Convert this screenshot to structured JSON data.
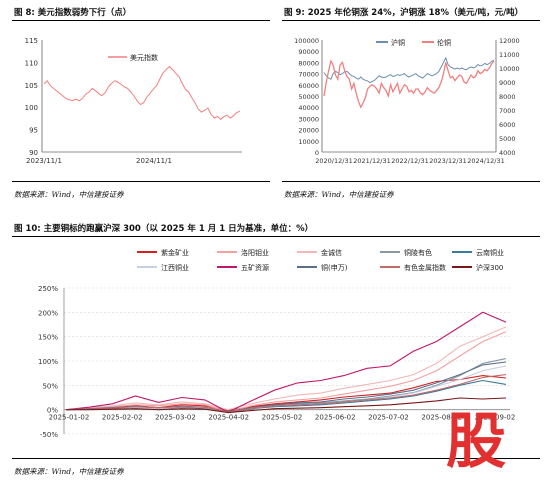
{
  "fig8": {
    "caption": "图 8: 美元指数弱势下行（点）",
    "source": "数据来源：Wind，中信建投证券",
    "chart_data": {
      "type": "line",
      "series": [
        {
          "name": "美元指数",
          "color": "#f08080",
          "values": [
            105.2,
            105.9,
            104.8,
            104.2,
            103.6,
            103.0,
            102.4,
            101.9,
            101.6,
            101.5,
            101.8,
            101.4,
            102.0,
            102.9,
            103.4,
            104.2,
            103.7,
            103.1,
            102.6,
            103.2,
            104.5,
            105.3,
            105.9,
            105.6,
            105.1,
            104.6,
            104.2,
            103.4,
            102.5,
            101.4,
            100.6,
            101.0,
            102.2,
            103.1,
            104.0,
            104.8,
            106.2,
            107.6,
            108.4,
            109.1,
            108.4,
            107.6,
            106.8,
            105.3,
            104.0,
            103.4,
            102.1,
            101.0,
            99.6,
            98.9,
            99.3,
            99.8,
            98.4,
            97.6,
            97.9,
            97.3,
            97.9,
            98.2,
            97.6,
            98.1,
            98.8,
            99.1
          ]
        }
      ],
      "x_ticks": [
        "2023/11/1",
        "2024/11/1"
      ],
      "ylim": [
        90,
        115
      ],
      "y_ticks": [
        90,
        95,
        100,
        105,
        110,
        115
      ]
    }
  },
  "fig9": {
    "caption": "图 9: 2025 年伦铜涨 24%，沪铜涨 18%（美元/吨，元/吨）",
    "source": "数据来源：Wind，中信建投证券",
    "chart_data": {
      "type": "line",
      "series": [
        {
          "name": "沪铜",
          "axis": "left",
          "color": "#6a8fb0",
          "values": [
            71000,
            68000,
            66000,
            65000,
            70000,
            72000,
            71000,
            69000,
            70000,
            71500,
            72000,
            70000,
            68000,
            67500,
            66000,
            65000,
            67000,
            65000,
            64000,
            63500,
            62000,
            63000,
            64000,
            66000,
            68000,
            67000,
            66500,
            67000,
            68000,
            69000,
            67500,
            68000,
            69000,
            68500,
            69000,
            70000,
            68000,
            67000,
            68000,
            69000,
            70000,
            68000,
            67000,
            66000,
            68000,
            70000,
            69000,
            68000,
            69000,
            70000,
            72000,
            76000,
            80000,
            84000,
            78000,
            76000,
            75000,
            74000,
            75000,
            74000,
            75000,
            74000,
            73500,
            75000,
            76000,
            75000,
            76000,
            78000,
            77000,
            77500,
            79000,
            78000,
            79000,
            81000,
            82000
          ]
        },
        {
          "name": "伦铜",
          "axis": "right",
          "color": "#f08080",
          "values": [
            8000,
            9000,
            9800,
            10500,
            10200,
            9500,
            9200,
            10200,
            10400,
            9800,
            9400,
            9200,
            8500,
            8900,
            8200,
            7600,
            7200,
            7500,
            7900,
            8500,
            8700,
            8800,
            8700,
            8500,
            8200,
            8900,
            8600,
            8400,
            8000,
            8800,
            8300,
            8600,
            8900,
            8200,
            8500,
            8800,
            8700,
            8300,
            8400,
            8200,
            8500,
            8500,
            8200,
            8100,
            8300,
            8600,
            8400,
            8300,
            8200,
            8400,
            8600,
            9000,
            9600,
            10400,
            9800,
            9300,
            9400,
            9100,
            9300,
            9500,
            9400,
            9000,
            8900,
            9200,
            9500,
            9300,
            9400,
            9800,
            9600,
            9700,
            9900,
            9800,
            10000,
            10300,
            10500
          ]
        }
      ],
      "x_ticks": [
        "2020/12/31",
        "2021/12/31",
        "2022/12/31",
        "2023/12/31",
        "2024/12/31"
      ],
      "ylim_left": [
        0,
        100000
      ],
      "ylim_right": [
        4000,
        12000
      ],
      "y_ticks_left": [
        0,
        10000,
        20000,
        30000,
        40000,
        50000,
        60000,
        70000,
        80000,
        90000,
        100000
      ],
      "y_ticks_right": [
        4000,
        5000,
        6000,
        7000,
        8000,
        9000,
        10000,
        11000,
        12000
      ]
    }
  },
  "fig10": {
    "caption": "图 10: 主要铜标的跑赢沪深 300（以 2025 年 1 月 1 日为基准，单位：%）",
    "source": "数据来源：Wind，中信建投证券",
    "chart_data": {
      "type": "line",
      "x_ticks": [
        "2025-01-02",
        "2025-02-02",
        "2025-03-02",
        "2025-04-02",
        "2025-05-02",
        "2025-06-02",
        "2025-07-02",
        "2025-08-02",
        "2025-09-02"
      ],
      "ylim": [
        -50,
        250
      ],
      "y_ticks": [
        "-50%",
        "0%",
        "50%",
        "100%",
        "150%",
        "200%",
        "250%"
      ],
      "y_values": [
        -50,
        0,
        50,
        100,
        150,
        200,
        250
      ],
      "series": [
        {
          "name": "紫金矿业",
          "color": "#d42020",
          "values": [
            0,
            2,
            5,
            8,
            4,
            10,
            8,
            -2,
            6,
            12,
            16,
            20,
            26,
            30,
            34,
            45,
            58,
            62,
            70,
            65
          ]
        },
        {
          "name": "洛阳钼业",
          "color": "#f4a0a0",
          "values": [
            0,
            3,
            6,
            10,
            8,
            12,
            10,
            -4,
            8,
            16,
            20,
            24,
            32,
            40,
            48,
            60,
            80,
            110,
            140,
            160
          ]
        },
        {
          "name": "金诚信",
          "color": "#f0b8b8",
          "values": [
            0,
            4,
            8,
            14,
            10,
            16,
            12,
            0,
            12,
            22,
            30,
            34,
            44,
            52,
            60,
            72,
            95,
            130,
            150,
            170
          ]
        },
        {
          "name": "铜陵有色",
          "color": "#8898a8",
          "values": [
            0,
            2,
            4,
            6,
            3,
            6,
            4,
            -6,
            2,
            8,
            12,
            14,
            18,
            22,
            28,
            35,
            50,
            70,
            95,
            105
          ]
        },
        {
          "name": "云南铜业",
          "color": "#3a7a9a",
          "values": [
            0,
            1,
            3,
            5,
            2,
            5,
            3,
            -6,
            2,
            6,
            8,
            10,
            14,
            18,
            22,
            28,
            38,
            50,
            60,
            52
          ]
        },
        {
          "name": "江西铜业",
          "color": "#c8d0e0",
          "values": [
            0,
            1,
            3,
            4,
            2,
            6,
            4,
            -4,
            3,
            8,
            10,
            12,
            16,
            20,
            26,
            34,
            48,
            62,
            80,
            90
          ]
        },
        {
          "name": "五矿资源",
          "color": "#c0186a",
          "values": [
            0,
            5,
            12,
            28,
            15,
            25,
            20,
            -5,
            18,
            40,
            55,
            60,
            70,
            85,
            90,
            120,
            140,
            170,
            200,
            180
          ]
        },
        {
          "name": "铜(申万)",
          "color": "#5a6f8a",
          "values": [
            0,
            2,
            4,
            7,
            4,
            7,
            5,
            -4,
            4,
            10,
            14,
            16,
            22,
            26,
            32,
            40,
            55,
            72,
            92,
            98
          ]
        },
        {
          "name": "有色金属指数",
          "color": "#c06a6a",
          "values": [
            0,
            1,
            3,
            6,
            4,
            6,
            5,
            -5,
            3,
            8,
            10,
            12,
            16,
            20,
            24,
            30,
            40,
            52,
            66,
            72
          ]
        },
        {
          "name": "沪深300",
          "color": "#7a1818",
          "values": [
            0,
            0,
            1,
            2,
            0,
            2,
            1,
            -6,
            -2,
            2,
            3,
            4,
            6,
            8,
            10,
            14,
            18,
            24,
            22,
            24
          ]
        }
      ]
    }
  },
  "watermark": "股"
}
